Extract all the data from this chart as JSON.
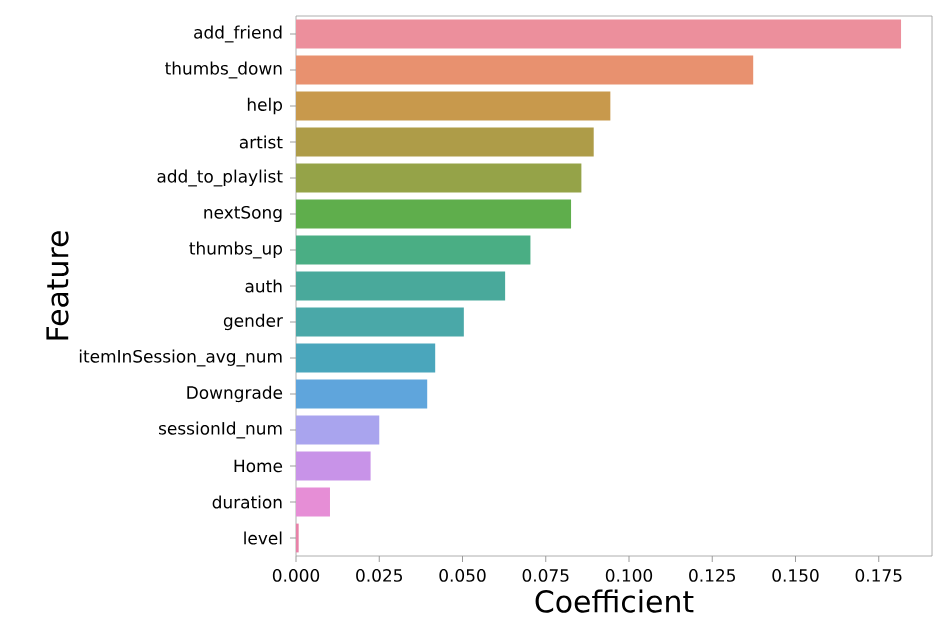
{
  "chart_data": {
    "type": "bar",
    "orientation": "horizontal",
    "xlabel": "Coefficient",
    "ylabel": "Feature",
    "categories": [
      "add_friend",
      "thumbs_down",
      "help",
      "artist",
      "add_to_playlist",
      "nextSong",
      "thumbs_up",
      "auth",
      "gender",
      "itemInSession_avg_num",
      "Downgrade",
      "sessionId_num",
      "Home",
      "duration",
      "level"
    ],
    "values": [
      0.1817,
      0.1373,
      0.0944,
      0.0894,
      0.0857,
      0.0826,
      0.0704,
      0.0628,
      0.0504,
      0.0418,
      0.0394,
      0.025,
      0.0224,
      0.0102,
      0.0008
    ],
    "colors": [
      "#ec8f9c",
      "#e8916f",
      "#c8994c",
      "#ae9c48",
      "#95a348",
      "#5fae4c",
      "#4aae84",
      "#49a99b",
      "#4aa8a8",
      "#4aa6bc",
      "#5fa5dc",
      "#a9a4ee",
      "#c893e8",
      "#e68ed6",
      "#e882a8"
    ],
    "xlim": [
      0,
      0.191
    ],
    "xticks": [
      {
        "value": 0,
        "label": "0.000"
      },
      {
        "value": 0.025,
        "label": "0.025"
      },
      {
        "value": 0.05,
        "label": "0.050"
      },
      {
        "value": 0.075,
        "label": "0.075"
      },
      {
        "value": 0.1,
        "label": "0.100"
      },
      {
        "value": 0.125,
        "label": "0.125"
      },
      {
        "value": 0.15,
        "label": "0.150"
      },
      {
        "value": 0.175,
        "label": "0.175"
      }
    ]
  }
}
